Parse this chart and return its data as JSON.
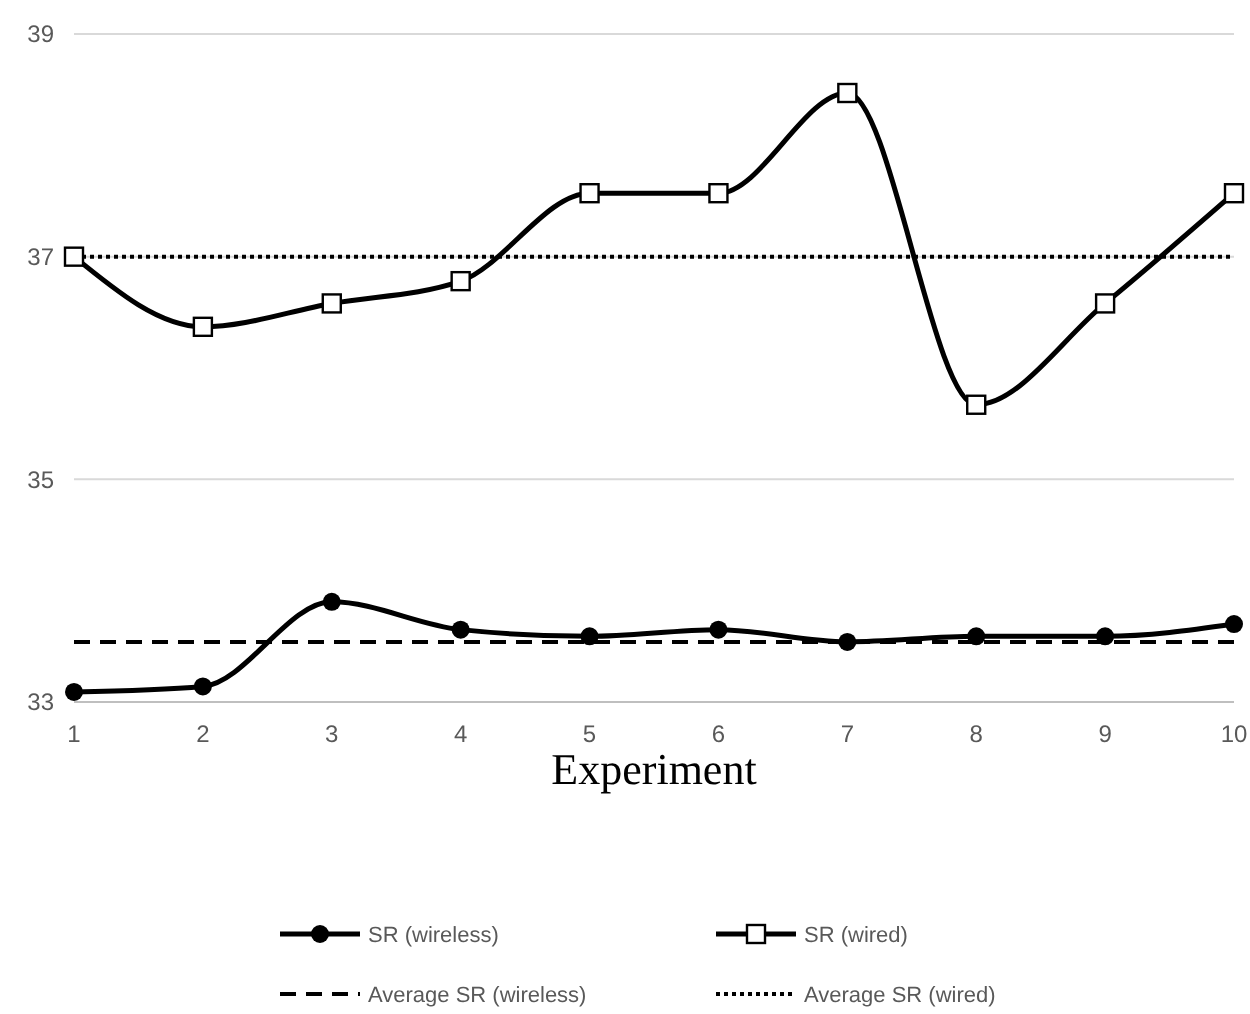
{
  "chart_data": {
    "type": "line",
    "xlabel": "Experiment",
    "x": [
      1,
      2,
      3,
      4,
      5,
      6,
      7,
      8,
      9,
      10
    ],
    "xlim": [
      1,
      10
    ],
    "xticks": [
      1,
      2,
      3,
      4,
      5,
      6,
      7,
      8,
      9,
      10
    ],
    "ylim": [
      33,
      39
    ],
    "yticks": [
      33,
      35,
      37,
      39
    ],
    "grid": "y",
    "legend": "bottom",
    "line_style": "solid",
    "series": [
      {
        "name": "SR (wireless)",
        "color": "#000000",
        "marker": "circle",
        "values": [
          33.09,
          33.14,
          33.9,
          33.65,
          33.59,
          33.65,
          33.54,
          33.59,
          33.59,
          33.7
        ]
      },
      {
        "name": "SR (wired)",
        "color": "#000000",
        "marker": "square",
        "values": [
          37.0,
          36.37,
          36.58,
          36.78,
          37.57,
          37.57,
          38.47,
          35.67,
          36.58,
          37.57
        ]
      }
    ],
    "ref_lines": [
      {
        "axis": "y",
        "value": 33.54,
        "label": "Average SR (wireless)",
        "color": "#000000",
        "line_style": "dashed"
      },
      {
        "axis": "y",
        "value": 37.0,
        "label": "Average SR (wired)",
        "color": "#000000",
        "line_style": "dotted"
      }
    ]
  }
}
